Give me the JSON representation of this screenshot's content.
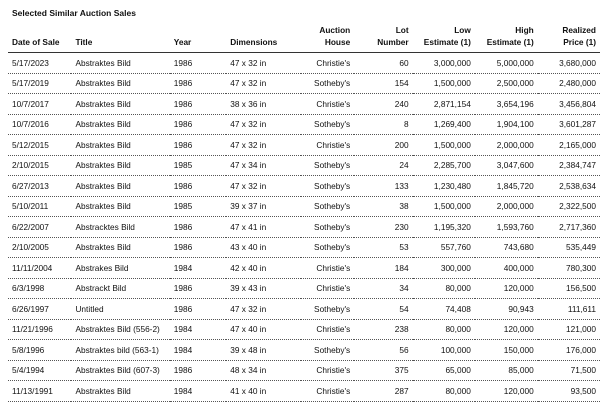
{
  "title": "Selected Similar Auction Sales",
  "columns": [
    {
      "line1": "",
      "line2": "Date of Sale",
      "align": "l"
    },
    {
      "line1": "",
      "line2": "Title",
      "align": "l"
    },
    {
      "line1": "",
      "line2": "Year",
      "align": "l"
    },
    {
      "line1": "",
      "line2": "Dimensions",
      "align": "l"
    },
    {
      "line1": "Auction",
      "line2": "House",
      "align": "r"
    },
    {
      "line1": "Lot",
      "line2": "Number",
      "align": "r"
    },
    {
      "line1": "Low",
      "line2": "Estimate (1)",
      "align": "r"
    },
    {
      "line1": "High",
      "line2": "Estimate (1)",
      "align": "r"
    },
    {
      "line1": "Realized",
      "line2": "Price (1)",
      "align": "r"
    }
  ],
  "rows": [
    [
      "5/17/2023",
      "Abstraktes Bild",
      "1986",
      "47 x 32 in",
      "Christie's",
      "60",
      "3,000,000",
      "5,000,000",
      "3,680,000"
    ],
    [
      "5/17/2019",
      "Abstraktes Bild",
      "1986",
      "47 x 32 in",
      "Sotheby's",
      "154",
      "1,500,000",
      "2,500,000",
      "2,480,000"
    ],
    [
      "10/7/2017",
      "Abstraktes Bild",
      "1986",
      "38 x 36 in",
      "Christie's",
      "240",
      "2,871,154",
      "3,654,196",
      "3,456,804"
    ],
    [
      "10/7/2016",
      "Abstraktes Bild",
      "1986",
      "47 x 32 in",
      "Sotheby's",
      "8",
      "1,269,400",
      "1,904,100",
      "3,601,287"
    ],
    [
      "5/12/2015",
      "Abstraktes Bild",
      "1986",
      "47 x 32 in",
      "Christie's",
      "200",
      "1,500,000",
      "2,000,000",
      "2,165,000"
    ],
    [
      "2/10/2015",
      "Abstraktes Bild",
      "1985",
      "47 x 34 in",
      "Sotheby's",
      "24",
      "2,285,700",
      "3,047,600",
      "2,384,747"
    ],
    [
      "6/27/2013",
      "Abstraktes Bild",
      "1986",
      "47 x 32 in",
      "Sotheby's",
      "133",
      "1,230,480",
      "1,845,720",
      "2,538,634"
    ],
    [
      "5/10/2011",
      "Abstraktes Bild",
      "1985",
      "39 x 37 in",
      "Sotheby's",
      "38",
      "1,500,000",
      "2,000,000",
      "2,322,500"
    ],
    [
      "6/22/2007",
      "Abstracktes Bild",
      "1986",
      "47 x 41 in",
      "Sotheby's",
      "230",
      "1,195,320",
      "1,593,760",
      "2,717,360"
    ],
    [
      "2/10/2005",
      "Abstraktes Bild",
      "1986",
      "43 x 40 in",
      "Sotheby's",
      "53",
      "557,760",
      "743,680",
      "535,449"
    ],
    [
      "11/11/2004",
      "Abstrakes Bild",
      "1984",
      "42 x 40 in",
      "Christie's",
      "184",
      "300,000",
      "400,000",
      "780,300"
    ],
    [
      "6/3/1998",
      "Abstrackt Bild",
      "1986",
      "39 x 43 in",
      "Christie's",
      "34",
      "80,000",
      "120,000",
      "156,500"
    ],
    [
      "6/26/1997",
      "Untitled",
      "1986",
      "47 x 32 in",
      "Sotheby's",
      "54",
      "74,408",
      "90,943",
      "111,611"
    ],
    [
      "11/21/1996",
      "Abstraktes Bild (556-2)",
      "1984",
      "47 x 40 in",
      "Christie's",
      "238",
      "80,000",
      "120,000",
      "121,000"
    ],
    [
      "5/8/1996",
      "Abstraktes bild (563-1)",
      "1984",
      "39 x 48 in",
      "Sotheby's",
      "56",
      "100,000",
      "150,000",
      "176,000"
    ],
    [
      "5/4/1994",
      "Abstraktes Bild (607-3)",
      "1986",
      "48 x 34 in",
      "Christie's",
      "375",
      "65,000",
      "85,000",
      "71,500"
    ],
    [
      "11/13/1991",
      "Abstraktes Bild",
      "1984",
      "41 x 40 in",
      "Christie's",
      "287",
      "80,000",
      "120,000",
      "93,500"
    ]
  ]
}
